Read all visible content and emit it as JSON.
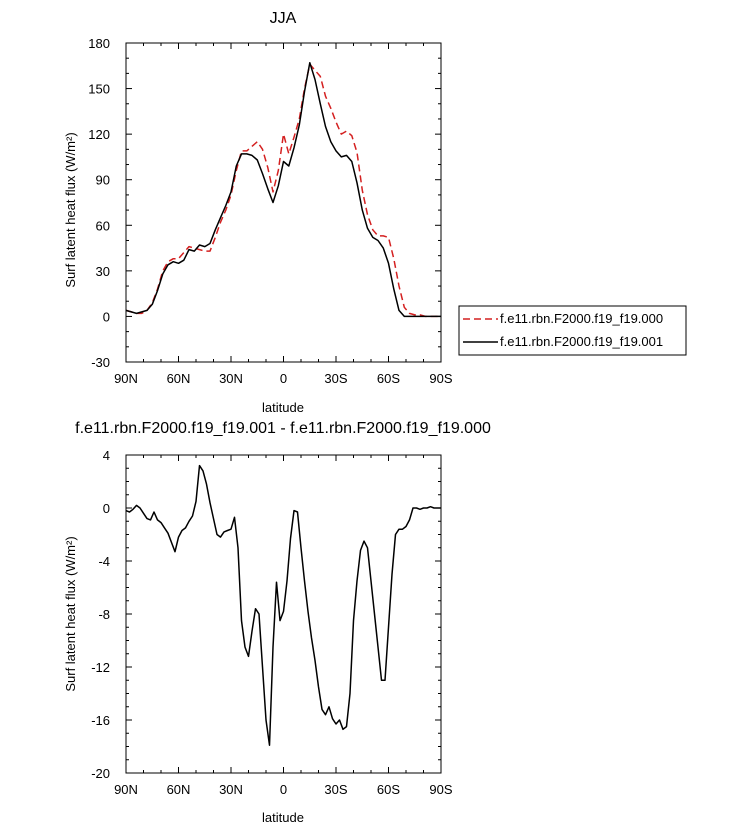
{
  "chart_data": [
    {
      "type": "line",
      "title": "JJA",
      "xlabel": "latitude",
      "ylabel": "Surf latent heat flux (W/m²)",
      "xlim": [
        -90,
        90
      ],
      "ylim": [
        -30,
        180
      ],
      "x_ticks": [
        -90,
        -60,
        -30,
        0,
        30,
        60,
        90
      ],
      "x_tick_labels": [
        "90N",
        "60N",
        "30N",
        "0",
        "30S",
        "60S",
        "90S"
      ],
      "y_ticks": [
        -30,
        0,
        30,
        60,
        90,
        120,
        150,
        180
      ],
      "y_tick_labels": [
        "-30",
        "0",
        "30",
        "60",
        "90",
        "120",
        "150",
        "180"
      ],
      "legend_position": "right, outside plot",
      "grid": false,
      "series": [
        {
          "name": "f.e11.rbn.F2000.f19_f19.000",
          "color": "#d42020",
          "style": "dashed",
          "x": [
            -90,
            -87,
            -84,
            -81,
            -78,
            -75,
            -72,
            -69,
            -66,
            -63,
            -60,
            -57,
            -54,
            -51,
            -48,
            -45,
            -42,
            -39,
            -36,
            -33,
            -30,
            -27,
            -24,
            -21,
            -18,
            -15,
            -12,
            -9,
            -6,
            -3,
            0,
            3,
            6,
            9,
            12,
            15,
            18,
            21,
            24,
            27,
            30,
            33,
            36,
            39,
            42,
            45,
            48,
            51,
            54,
            57,
            60,
            63,
            66,
            69,
            72,
            75,
            78,
            81,
            84,
            87,
            90
          ],
          "y": [
            4,
            3,
            2,
            2,
            4,
            9,
            18,
            30,
            36,
            38,
            38,
            42,
            46,
            45,
            44,
            43,
            43,
            52,
            62,
            70,
            80,
            96,
            109,
            109,
            112,
            115,
            110,
            98,
            82,
            96,
            120,
            107,
            118,
            130,
            150,
            166,
            162,
            158,
            145,
            137,
            128,
            120,
            122,
            119,
            108,
            83,
            67,
            57,
            53,
            53,
            52,
            38,
            20,
            6,
            2,
            1,
            1,
            0,
            0,
            0,
            0
          ]
        },
        {
          "name": "f.e11.rbn.F2000.f19_f19.001",
          "color": "#000000",
          "style": "solid",
          "x": [
            -90,
            -87,
            -84,
            -81,
            -78,
            -75,
            -72,
            -69,
            -66,
            -63,
            -60,
            -57,
            -54,
            -51,
            -48,
            -45,
            -42,
            -39,
            -36,
            -33,
            -30,
            -27,
            -24,
            -21,
            -18,
            -15,
            -12,
            -9,
            -6,
            -3,
            0,
            3,
            6,
            9,
            12,
            15,
            18,
            21,
            24,
            27,
            30,
            33,
            36,
            39,
            42,
            45,
            48,
            51,
            54,
            57,
            60,
            63,
            66,
            69,
            72,
            75,
            78,
            81,
            84,
            87,
            90
          ],
          "y": [
            4,
            3,
            2,
            3,
            4,
            8,
            17,
            28,
            34,
            36,
            35,
            37,
            44,
            43,
            47,
            46,
            48,
            57,
            65,
            73,
            82,
            99,
            107,
            107,
            106,
            103,
            94,
            84,
            75,
            86,
            102,
            99,
            111,
            126,
            148,
            167,
            156,
            140,
            125,
            115,
            109,
            105,
            106,
            102,
            88,
            70,
            58,
            52,
            50,
            45,
            35,
            18,
            4,
            0,
            0,
            0,
            0,
            0,
            0,
            0,
            0
          ]
        }
      ]
    },
    {
      "type": "line",
      "title": "f.e11.rbn.F2000.f19_f19.001 - f.e11.rbn.F2000.f19_f19.000",
      "xlabel": "latitude",
      "ylabel": "Surf latent heat flux (W/m²)",
      "xlim": [
        -90,
        90
      ],
      "ylim": [
        -20,
        4
      ],
      "x_ticks": [
        -90,
        -60,
        -30,
        0,
        30,
        60,
        90
      ],
      "x_tick_labels": [
        "90N",
        "60N",
        "30N",
        "0",
        "30S",
        "60S",
        "90S"
      ],
      "y_ticks": [
        -20,
        -16,
        -12,
        -8,
        -4,
        0,
        4
      ],
      "y_tick_labels": [
        "-20",
        "-16",
        "-12",
        "-8",
        "-4",
        "0",
        "4"
      ],
      "grid": false,
      "series": [
        {
          "color": "#000000",
          "style": "solid",
          "x": [
            -90,
            -88,
            -86,
            -84,
            -82,
            -80,
            -78,
            -76,
            -74,
            -72,
            -70,
            -68,
            -66,
            -64,
            -62,
            -60,
            -58,
            -56,
            -54,
            -52,
            -50,
            -48,
            -46,
            -44,
            -42,
            -40,
            -38,
            -36,
            -34,
            -32,
            -30,
            -28,
            -26,
            -24,
            -22,
            -20,
            -18,
            -16,
            -14,
            -12,
            -10,
            -8,
            -6,
            -4,
            -2,
            0,
            2,
            4,
            6,
            8,
            10,
            12,
            14,
            16,
            18,
            20,
            22,
            24,
            26,
            28,
            30,
            32,
            34,
            36,
            38,
            40,
            42,
            44,
            46,
            48,
            50,
            52,
            54,
            56,
            58,
            60,
            62,
            64,
            66,
            68,
            70,
            72,
            74,
            76,
            78,
            80,
            82,
            84,
            86,
            88,
            90
          ],
          "y": [
            -0.2,
            -0.3,
            -0.1,
            0.2,
            0,
            -0.4,
            -0.8,
            -0.9,
            -0.3,
            -0.9,
            -1.1,
            -1.5,
            -1.9,
            -2.6,
            -3.3,
            -2.2,
            -1.7,
            -1.5,
            -1.0,
            -0.6,
            0.5,
            3.2,
            2.8,
            1.8,
            0.4,
            -0.8,
            -2.0,
            -2.2,
            -1.8,
            -1.7,
            -1.6,
            -0.7,
            -3.0,
            -8.5,
            -10.5,
            -11.2,
            -9.3,
            -7.6,
            -8.0,
            -12.0,
            -16.0,
            -17.9,
            -10.5,
            -5.6,
            -8.5,
            -7.8,
            -5.5,
            -2.3,
            -0.2,
            -0.3,
            -3.0,
            -5.5,
            -7.8,
            -9.8,
            -11.5,
            -13.5,
            -15.2,
            -15.6,
            -15.0,
            -15.9,
            -16.3,
            -16.0,
            -16.7,
            -16.5,
            -14.0,
            -8.5,
            -5.5,
            -3.2,
            -2.5,
            -3.0,
            -5.5,
            -8.0,
            -10.5,
            -13.0,
            -13.0,
            -9.0,
            -5.0,
            -2.0,
            -1.6,
            -1.6,
            -1.4,
            -0.9,
            0,
            0,
            -0.1,
            0,
            0,
            0.1,
            0,
            0,
            0
          ]
        }
      ]
    }
  ]
}
